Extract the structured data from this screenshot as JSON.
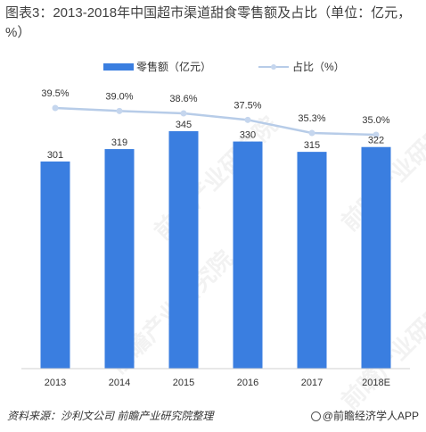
{
  "title": "图表3：2013-2018年中国超市渠道甜食零售额及占比（单位：亿元，%）",
  "footer": {
    "source": "资料来源：沙利文公司 前瞻产业研究院整理",
    "brand": "@前瞻经济学人APP"
  },
  "watermark": "前瞻产业研究院",
  "colors": {
    "bar": "#3a7ee0",
    "line": "#b7cce8",
    "line_point": "#c5d6ee"
  },
  "chart_data": {
    "type": "bar",
    "categories": [
      "2013",
      "2014",
      "2015",
      "2016",
      "2017",
      "2018E"
    ],
    "series": [
      {
        "name": "零售额（亿元）",
        "type": "bar",
        "values": [
          301,
          319,
          345,
          330,
          315,
          322
        ],
        "labels": [
          "301",
          "319",
          "345",
          "330",
          "315",
          "322"
        ]
      },
      {
        "name": "占比（%）",
        "type": "line",
        "values": [
          39.5,
          39.0,
          38.6,
          37.5,
          35.3,
          35.0
        ],
        "labels": [
          "39.5%",
          "39.0%",
          "38.6%",
          "37.5%",
          "35.3%",
          "35.0%"
        ]
      }
    ],
    "legend_position": "top",
    "grid": false
  }
}
